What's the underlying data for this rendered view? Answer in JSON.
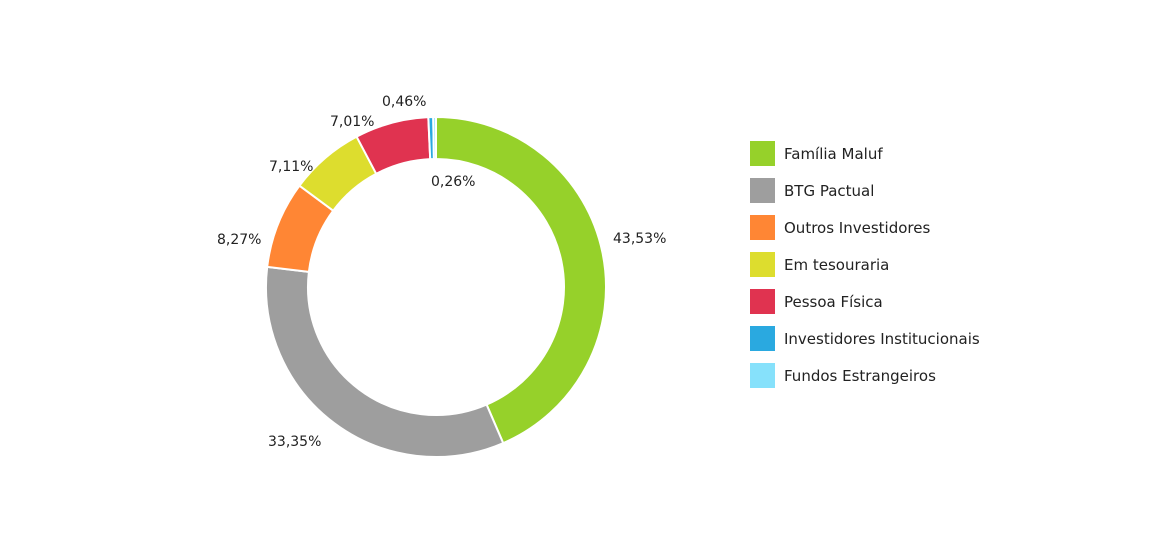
{
  "chart_data": {
    "type": "pie",
    "donut": true,
    "legend_position": "right",
    "series": [
      {
        "name": "Família Maluf",
        "value": 43.53,
        "label": "43,53%",
        "color": "#96d12a"
      },
      {
        "name": "BTG Pactual",
        "value": 33.35,
        "label": "33,35%",
        "color": "#9e9e9e"
      },
      {
        "name": "Outros Investidores",
        "value": 8.27,
        "label": "8,27%",
        "color": "#ff8634"
      },
      {
        "name": "Em tesouraria",
        "value": 7.11,
        "label": "7,11%",
        "color": "#dddd2e"
      },
      {
        "name": "Pessoa Física",
        "value": 7.01,
        "label": "7,01%",
        "color": "#e03350"
      },
      {
        "name": "Investidores Institucionais",
        "value": 0.46,
        "label": "0,46%",
        "color": "#2aa9e0"
      },
      {
        "name": "Fundos Estrangeiros",
        "value": 0.26,
        "label": "0,26%",
        "color": "#86e1fb"
      }
    ]
  }
}
